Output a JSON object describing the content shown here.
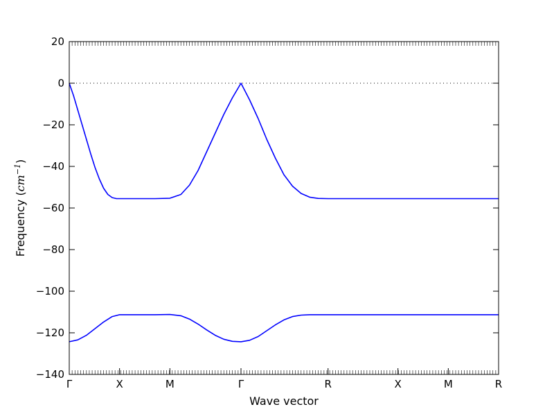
{
  "chart_data": {
    "type": "line",
    "title": "",
    "xlabel": "Wave vector",
    "ylabel_text": "Frequency (",
    "ylabel_unit": "cm",
    "ylabel_exp": "−1",
    "ylabel_close": ")",
    "ylim": [
      -140,
      20
    ],
    "yticks": [
      20,
      0,
      -20,
      -40,
      -60,
      -80,
      -100,
      -120,
      -140
    ],
    "ytick_labels": [
      "20",
      "0",
      "−20",
      "−40",
      "−60",
      "−80",
      "−100",
      "−120",
      "−140"
    ],
    "xlim": [
      0,
      5.0
    ],
    "xticks": [
      {
        "pos": 0.0,
        "label": "Γ"
      },
      {
        "pos": 0.586,
        "label": "X"
      },
      {
        "pos": 1.172,
        "label": "M"
      },
      {
        "pos": 2.0,
        "label": "Γ"
      },
      {
        "pos": 3.014,
        "label": "R"
      },
      {
        "pos": 3.828,
        "label": "X"
      },
      {
        "pos": 4.414,
        "label": "M"
      },
      {
        "pos": 5.0,
        "label": "R"
      }
    ],
    "zero_line": {
      "y": 0,
      "style": "dotted"
    },
    "line_color": "#0000ff",
    "series": [
      {
        "x": [
          0.0,
          0.05,
          0.1,
          0.15,
          0.2,
          0.25,
          0.3,
          0.35,
          0.4,
          0.45,
          0.5,
          0.55,
          0.586,
          0.7,
          0.85,
          1.0,
          1.172,
          1.3,
          1.4,
          1.5,
          1.6,
          1.7,
          1.8,
          1.9,
          2.0,
          2.1,
          2.2,
          2.3,
          2.4,
          2.5,
          2.6,
          2.7,
          2.8,
          2.9,
          3.014,
          3.3,
          3.6,
          3.828,
          4.1,
          4.414,
          4.7,
          5.0
        ],
        "y": [
          0,
          -6,
          -13,
          -20,
          -27,
          -34,
          -40.5,
          -46,
          -50.5,
          -53.5,
          -55.0,
          -55.5,
          -55.5,
          -55.5,
          -55.5,
          -55.5,
          -55.3,
          -53.5,
          -49,
          -42,
          -33,
          -24,
          -15,
          -7,
          0,
          -8,
          -17,
          -27,
          -36,
          -44,
          -49.5,
          -53,
          -54.8,
          -55.4,
          -55.5,
          -55.5,
          -55.5,
          -55.5,
          -55.5,
          -55.5,
          -55.5,
          -55.5
        ]
      },
      {
        "x": [
          0.0,
          0.1,
          0.2,
          0.3,
          0.4,
          0.5,
          0.586,
          0.7,
          0.85,
          1.0,
          1.172,
          1.3,
          1.4,
          1.5,
          1.6,
          1.7,
          1.8,
          1.9,
          2.0,
          2.1,
          2.2,
          2.3,
          2.4,
          2.5,
          2.6,
          2.7,
          2.8,
          2.9,
          3.014,
          3.3,
          3.6,
          3.828,
          4.1,
          4.414,
          4.7,
          5.0
        ],
        "y": [
          -124.3,
          -123.4,
          -121.2,
          -118,
          -114.8,
          -112.2,
          -111.3,
          -111.3,
          -111.3,
          -111.3,
          -111.2,
          -111.8,
          -113.4,
          -115.8,
          -118.6,
          -121.2,
          -123.1,
          -124.1,
          -124.3,
          -123.6,
          -121.8,
          -119,
          -116.2,
          -113.8,
          -112.2,
          -111.5,
          -111.3,
          -111.3,
          -111.3,
          -111.3,
          -111.3,
          -111.3,
          -111.3,
          -111.3,
          -111.3,
          -111.3
        ]
      }
    ]
  }
}
